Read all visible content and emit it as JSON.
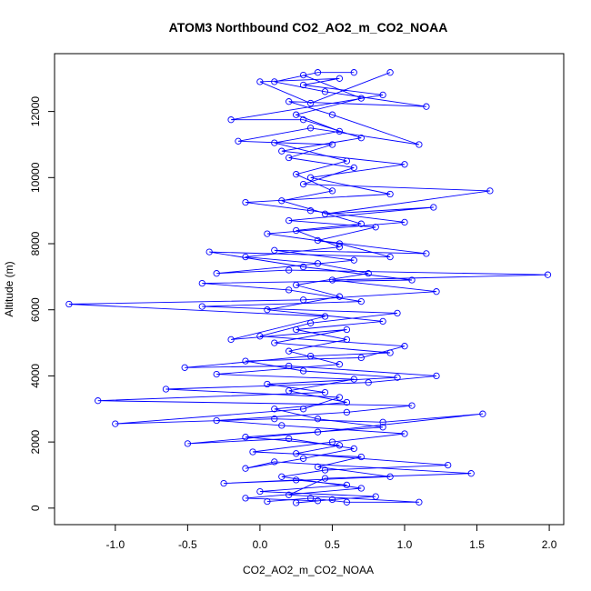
{
  "chart_data": {
    "type": "scatter",
    "title": "ATOM3 Northbound CO2_AO2_m_CO2_NOAA",
    "xlabel": "CO2_AO2_m_CO2_NOAA",
    "ylabel": "Altitude (m)",
    "xlim": [
      -1.42,
      2.1
    ],
    "ylim": [
      -500,
      13750
    ],
    "xticks": [
      -1.0,
      -0.5,
      0.0,
      0.5,
      1.0,
      1.5,
      2.0
    ],
    "xtick_labels": [
      "-1.0",
      "-0.5",
      "0.0",
      "0.5",
      "1.0",
      "1.5",
      "2.0"
    ],
    "yticks": [
      0,
      2000,
      4000,
      6000,
      8000,
      10000,
      12000
    ],
    "ytick_labels": [
      "0",
      "2000",
      "4000",
      "6000",
      "8000",
      "10000",
      "12000"
    ],
    "grid": false,
    "marker": "open-circle",
    "connected": true,
    "color": "#0000ff",
    "series": [
      {
        "values": [
          [
            0.05,
            200
          ],
          [
            0.35,
            300
          ],
          [
            0.6,
            180
          ],
          [
            1.1,
            180
          ],
          [
            0.2,
            400
          ],
          [
            0.45,
            900
          ],
          [
            1.46,
            1050
          ],
          [
            0.1,
            1400
          ],
          [
            -0.1,
            1200
          ],
          [
            0.3,
            1500
          ],
          [
            0.65,
            1800
          ],
          [
            0.2,
            2100
          ],
          [
            -0.5,
            1950
          ],
          [
            0.4,
            2300
          ],
          [
            1.54,
            2850
          ],
          [
            0.85,
            2600
          ],
          [
            0.1,
            2700
          ],
          [
            -1.0,
            2550
          ],
          [
            0.3,
            3000
          ],
          [
            0.55,
            3350
          ],
          [
            -0.65,
            3600
          ],
          [
            0.75,
            3800
          ],
          [
            1.22,
            4000
          ],
          [
            0.2,
            4300
          ],
          [
            -0.52,
            4250
          ],
          [
            0.35,
            4600
          ],
          [
            0.9,
            4700
          ],
          [
            0.1,
            5000
          ],
          [
            0.6,
            5400
          ],
          [
            -0.2,
            5100
          ],
          [
            0.45,
            5800
          ],
          [
            -1.32,
            6170
          ],
          [
            0.3,
            6300
          ],
          [
            1.22,
            6550
          ],
          [
            0.5,
            6900
          ],
          [
            1.99,
            7060
          ],
          [
            0.2,
            7200
          ],
          [
            -0.3,
            7100
          ],
          [
            0.65,
            7500
          ],
          [
            0.1,
            7800
          ],
          [
            1.15,
            7700
          ],
          [
            0.4,
            8100
          ],
          [
            0.8,
            8500
          ],
          [
            0.2,
            8700
          ],
          [
            1.2,
            9100
          ],
          [
            0.45,
            8900
          ],
          [
            1.59,
            9600
          ],
          [
            0.3,
            9800
          ],
          [
            0.65,
            10300
          ],
          [
            0.2,
            10600
          ],
          [
            0.5,
            11000
          ],
          [
            -0.15,
            11100
          ],
          [
            0.35,
            11500
          ],
          [
            1.1,
            11000
          ],
          [
            0.5,
            11900
          ],
          [
            0.2,
            12300
          ],
          [
            1.15,
            12150
          ],
          [
            0.45,
            12600
          ],
          [
            0.1,
            12900
          ],
          [
            0.4,
            13180
          ],
          [
            0.65,
            13180
          ]
        ]
      },
      {
        "values": [
          [
            0.25,
            160
          ],
          [
            0.5,
            260
          ],
          [
            0.8,
            350
          ],
          [
            0.0,
            500
          ],
          [
            0.6,
            700
          ],
          [
            0.25,
            850
          ],
          [
            -0.25,
            750
          ],
          [
            0.9,
            950
          ],
          [
            0.4,
            1250
          ],
          [
            0.7,
            1550
          ],
          [
            -0.05,
            1700
          ],
          [
            0.5,
            2000
          ],
          [
            1.0,
            2250
          ],
          [
            0.15,
            2500
          ],
          [
            -0.3,
            2650
          ],
          [
            0.6,
            2900
          ],
          [
            1.05,
            3100
          ],
          [
            -1.12,
            3250
          ],
          [
            0.45,
            3500
          ],
          [
            0.05,
            3750
          ],
          [
            0.95,
            3950
          ],
          [
            0.3,
            4150
          ],
          [
            -0.1,
            4450
          ],
          [
            0.7,
            4550
          ],
          [
            1.0,
            4900
          ],
          [
            0.0,
            5200
          ],
          [
            0.35,
            5600
          ],
          [
            0.95,
            5900
          ],
          [
            -0.4,
            6100
          ],
          [
            0.7,
            6250
          ],
          [
            0.2,
            6600
          ],
          [
            -0.4,
            6800
          ],
          [
            1.05,
            6900
          ],
          [
            0.3,
            7300
          ],
          [
            -0.35,
            7750
          ],
          [
            0.9,
            7600
          ],
          [
            0.55,
            8000
          ],
          [
            0.05,
            8300
          ],
          [
            1.0,
            8650
          ],
          [
            0.35,
            9000
          ],
          [
            -0.1,
            9250
          ],
          [
            0.9,
            9500
          ],
          [
            0.35,
            10000
          ],
          [
            1.0,
            10400
          ],
          [
            0.15,
            10800
          ],
          [
            0.7,
            11200
          ],
          [
            0.3,
            11750
          ],
          [
            -0.2,
            11750
          ],
          [
            0.85,
            12500
          ],
          [
            0.3,
            12800
          ],
          [
            0.55,
            13000
          ],
          [
            0.0,
            12900
          ],
          [
            0.35,
            12250
          ],
          [
            0.9,
            13180
          ]
        ]
      },
      {
        "values": [
          [
            0.4,
            220
          ],
          [
            -0.1,
            300
          ],
          [
            0.7,
            600
          ],
          [
            0.15,
            950
          ],
          [
            0.45,
            1150
          ],
          [
            1.3,
            1300
          ],
          [
            0.25,
            1650
          ],
          [
            0.55,
            1900
          ],
          [
            -0.1,
            2150
          ],
          [
            0.85,
            2450
          ],
          [
            0.4,
            2700
          ],
          [
            0.1,
            3000
          ],
          [
            0.6,
            3200
          ],
          [
            0.2,
            3550
          ],
          [
            0.65,
            3900
          ],
          [
            -0.3,
            4050
          ],
          [
            0.55,
            4350
          ],
          [
            0.2,
            4750
          ],
          [
            0.6,
            5100
          ],
          [
            0.25,
            5400
          ],
          [
            0.85,
            5650
          ],
          [
            0.05,
            6000
          ],
          [
            0.55,
            6400
          ],
          [
            0.25,
            6750
          ],
          [
            0.75,
            7100
          ],
          [
            0.4,
            7400
          ],
          [
            -0.1,
            7600
          ],
          [
            0.55,
            7900
          ],
          [
            0.25,
            8400
          ],
          [
            0.7,
            8600
          ],
          [
            0.15,
            9300
          ],
          [
            0.5,
            9600
          ],
          [
            0.25,
            10100
          ],
          [
            0.6,
            10500
          ],
          [
            0.1,
            11050
          ],
          [
            0.55,
            11400
          ],
          [
            0.25,
            11900
          ],
          [
            0.7,
            12400
          ],
          [
            0.3,
            13100
          ]
        ]
      }
    ]
  }
}
